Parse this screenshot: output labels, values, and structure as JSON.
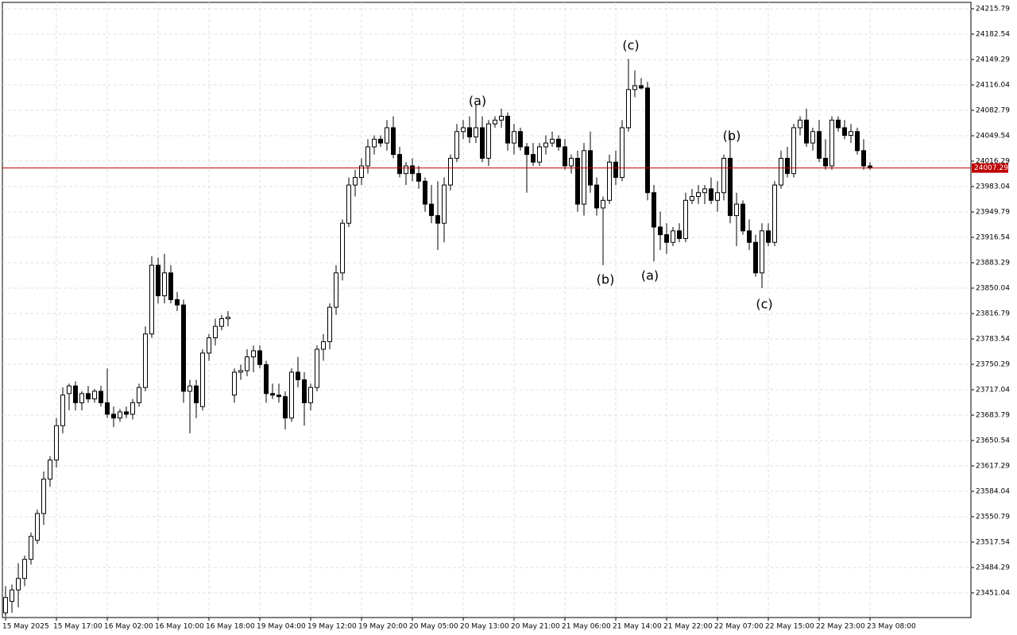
{
  "chart_data": {
    "type": "candlestick",
    "categories": [
      "15 May 2025",
      null,
      null,
      null,
      null,
      null,
      null,
      null,
      "15 May 17:00",
      null,
      null,
      null,
      null,
      null,
      null,
      null,
      "16 May 02:00",
      null,
      null,
      null,
      null,
      null,
      null,
      null,
      "16 May 10:00",
      null,
      null,
      null,
      null,
      null,
      null,
      null,
      "16 May 18:00",
      null,
      null,
      null,
      null,
      null,
      null,
      null,
      "19 May 04:00",
      null,
      null,
      null,
      null,
      null,
      null,
      null,
      "19 May 12:00",
      null,
      null,
      null,
      null,
      null,
      null,
      null,
      "19 May 20:00",
      null,
      null,
      null,
      null,
      null,
      null,
      null,
      "20 May 05:00",
      null,
      null,
      null,
      null,
      null,
      null,
      null,
      "20 May 13:00",
      null,
      null,
      null,
      null,
      null,
      null,
      null,
      "20 May 21:00",
      null,
      null,
      null,
      null,
      null,
      null,
      null,
      "21 May 06:00",
      null,
      null,
      null,
      null,
      null,
      null,
      null,
      "21 May 14:00",
      null,
      null,
      null,
      null,
      null,
      null,
      null,
      "21 May 22:00",
      null,
      null,
      null,
      null,
      null,
      null,
      null,
      "22 May 07:00",
      null,
      null,
      null,
      null,
      null,
      null,
      null,
      "22 May 15:00",
      null,
      null,
      null,
      null,
      null,
      null,
      null,
      "22 May 23:00",
      null,
      null,
      null,
      null,
      null,
      null,
      null,
      "23 May 08:00"
    ],
    "ohlc": [
      [
        23425,
        23460,
        23420,
        23445
      ],
      [
        23440,
        23462,
        23425,
        23455
      ],
      [
        23455,
        23490,
        23432,
        23470
      ],
      [
        23470,
        23500,
        23460,
        23495
      ],
      [
        23495,
        23530,
        23488,
        23525
      ],
      [
        23520,
        23560,
        23515,
        23555
      ],
      [
        23555,
        23610,
        23540,
        23600
      ],
      [
        23600,
        23630,
        23590,
        23625
      ],
      [
        23625,
        23680,
        23615,
        23670
      ],
      [
        23670,
        23720,
        23660,
        23710
      ],
      [
        23712,
        23725,
        23690,
        23722
      ],
      [
        23722,
        23728,
        23690,
        23700
      ],
      [
        23700,
        23715,
        23690,
        23712
      ],
      [
        23712,
        23722,
        23700,
        23705
      ],
      [
        23705,
        23718,
        23700,
        23715
      ],
      [
        23715,
        23722,
        23695,
        23700
      ],
      [
        23700,
        23745,
        23680,
        23685
      ],
      [
        23685,
        23695,
        23668,
        23680
      ],
      [
        23680,
        23692,
        23675,
        23688
      ],
      [
        23688,
        23695,
        23680,
        23685
      ],
      [
        23685,
        23705,
        23678,
        23700
      ],
      [
        23700,
        23725,
        23695,
        23720
      ],
      [
        23720,
        23800,
        23715,
        23790
      ],
      [
        23790,
        23892,
        23785,
        23880
      ],
      [
        23880,
        23890,
        23830,
        23840
      ],
      [
        23840,
        23895,
        23830,
        23870
      ],
      [
        23870,
        23880,
        23830,
        23835
      ],
      [
        23835,
        23845,
        23820,
        23828
      ],
      [
        23828,
        23835,
        23700,
        23715
      ],
      [
        23715,
        23730,
        23660,
        23722
      ],
      [
        23722,
        23730,
        23680,
        23700
      ],
      [
        23695,
        23770,
        23690,
        23765
      ],
      [
        23765,
        23790,
        23755,
        23785
      ],
      [
        23785,
        23810,
        23775,
        23800
      ],
      [
        23800,
        23815,
        23795,
        23810
      ],
      [
        23810,
        23820,
        23800,
        23812
      ],
      [
        23710,
        23745,
        23700,
        23740
      ],
      [
        23740,
        23750,
        23730,
        23742
      ],
      [
        23742,
        23770,
        23735,
        23760
      ],
      [
        23760,
        23775,
        23740,
        23768
      ],
      [
        23768,
        23775,
        23745,
        23750
      ],
      [
        23750,
        23755,
        23700,
        23712
      ],
      [
        23712,
        23725,
        23705,
        23710
      ],
      [
        23710,
        23725,
        23700,
        23708
      ],
      [
        23708,
        23715,
        23665,
        23680
      ],
      [
        23680,
        23745,
        23675,
        23740
      ],
      [
        23740,
        23760,
        23720,
        23730
      ],
      [
        23730,
        23740,
        23670,
        23700
      ],
      [
        23700,
        23725,
        23690,
        23720
      ],
      [
        23720,
        23775,
        23715,
        23770
      ],
      [
        23770,
        23790,
        23755,
        23780
      ],
      [
        23780,
        23830,
        23770,
        23825
      ],
      [
        23825,
        23880,
        23815,
        23870
      ],
      [
        23870,
        23940,
        23860,
        23935
      ],
      [
        23935,
        23995,
        23930,
        23985
      ],
      [
        23985,
        24005,
        23970,
        23995
      ],
      [
        23995,
        24020,
        23985,
        24010
      ],
      [
        24010,
        24045,
        24000,
        24035
      ],
      [
        24035,
        24050,
        24025,
        24045
      ],
      [
        24045,
        24050,
        24035,
        24040
      ],
      [
        24040,
        24070,
        24030,
        24060
      ],
      [
        24060,
        24075,
        24020,
        24025
      ],
      [
        24025,
        24035,
        23995,
        24000
      ],
      [
        24000,
        24015,
        23985,
        24010
      ],
      [
        24010,
        24020,
        23990,
        24000
      ],
      [
        24000,
        24010,
        23980,
        23990
      ],
      [
        23990,
        23995,
        23950,
        23960
      ],
      [
        23960,
        23985,
        23935,
        23945
      ],
      [
        23945,
        23990,
        23900,
        23935
      ],
      [
        23935,
        23995,
        23910,
        23985
      ],
      [
        23985,
        24025,
        23978,
        24020
      ],
      [
        24020,
        24065,
        24015,
        24055
      ],
      [
        24055,
        24070,
        24045,
        24060
      ],
      [
        24060,
        24075,
        24040,
        24048
      ],
      [
        24048,
        24090,
        24040,
        24060
      ],
      [
        24060,
        24075,
        24015,
        24020
      ],
      [
        24020,
        24070,
        24010,
        24065
      ],
      [
        24065,
        24075,
        24060,
        24070
      ],
      [
        24070,
        24085,
        24060,
        24075
      ],
      [
        24075,
        24080,
        24030,
        24040
      ],
      [
        24040,
        24065,
        24025,
        24055
      ],
      [
        24055,
        24060,
        24030,
        24035
      ],
      [
        24035,
        24040,
        23975,
        24025
      ],
      [
        24025,
        24040,
        24010,
        24015
      ],
      [
        24015,
        24040,
        24010,
        24035
      ],
      [
        24035,
        24050,
        24025,
        24040
      ],
      [
        24040,
        24055,
        24035,
        24045
      ],
      [
        24045,
        24050,
        24030,
        24035
      ],
      [
        24035,
        24045,
        24005,
        24010
      ],
      [
        24010,
        24025,
        24000,
        24020
      ],
      [
        24020,
        24030,
        23950,
        23960
      ],
      [
        23960,
        24040,
        23945,
        24030
      ],
      [
        24030,
        24055,
        23975,
        23985
      ],
      [
        23985,
        23995,
        23945,
        23955
      ],
      [
        23955,
        23970,
        23880,
        23965
      ],
      [
        23965,
        24025,
        23960,
        24015
      ],
      [
        24015,
        24030,
        23985,
        23995
      ],
      [
        23995,
        24070,
        23990,
        24060
      ],
      [
        24060,
        24150,
        24055,
        24110
      ],
      [
        24110,
        24135,
        24100,
        24115
      ],
      [
        24115,
        24125,
        24110,
        24112
      ],
      [
        24112,
        24120,
        23965,
        23975
      ],
      [
        23975,
        23985,
        23885,
        23930
      ],
      [
        23930,
        23950,
        23900,
        23920
      ],
      [
        23920,
        23935,
        23895,
        23910
      ],
      [
        23910,
        23930,
        23905,
        23925
      ],
      [
        23925,
        23935,
        23910,
        23915
      ],
      [
        23915,
        23975,
        23910,
        23965
      ],
      [
        23965,
        23980,
        23960,
        23970
      ],
      [
        23970,
        23985,
        23960,
        23975
      ],
      [
        23975,
        23985,
        23960,
        23980
      ],
      [
        23980,
        23995,
        23960,
        23965
      ],
      [
        23965,
        23990,
        23950,
        23975
      ],
      [
        23975,
        24025,
        23965,
        24020
      ],
      [
        24020,
        24050,
        23935,
        23945
      ],
      [
        23945,
        23975,
        23905,
        23960
      ],
      [
        23960,
        23965,
        23920,
        23925
      ],
      [
        23925,
        23940,
        23900,
        23910
      ],
      [
        23910,
        23920,
        23865,
        23870
      ],
      [
        23870,
        23935,
        23850,
        23925
      ],
      [
        23925,
        23935,
        23905,
        23910
      ],
      [
        23910,
        23990,
        23905,
        23985
      ],
      [
        23985,
        24030,
        23980,
        24020
      ],
      [
        24020,
        24035,
        23995,
        24000
      ],
      [
        24000,
        24065,
        23995,
        24060
      ],
      [
        24060,
        24075,
        24050,
        24070
      ],
      [
        24070,
        24085,
        24035,
        24040
      ],
      [
        24040,
        24060,
        24030,
        24055
      ],
      [
        24055,
        24070,
        24015,
        24020
      ],
      [
        24020,
        24045,
        24005,
        24010
      ],
      [
        24010,
        24075,
        24005,
        24070
      ],
      [
        24070,
        24075,
        24055,
        24060
      ],
      [
        24060,
        24070,
        24045,
        24050
      ],
      [
        24050,
        24065,
        24040,
        24055
      ],
      [
        24055,
        24060,
        24025,
        24030
      ],
      [
        24030,
        24045,
        24005,
        24010
      ],
      [
        24010,
        24015,
        24005,
        24007.29
      ]
    ],
    "ylim": [
      23418.8,
      24224.1
    ],
    "yticks": [
      23451.04,
      23484.29,
      23517.54,
      23550.79,
      23584.04,
      23617.29,
      23650.54,
      23683.79,
      23717.04,
      23750.29,
      23783.54,
      23816.79,
      23850.04,
      23883.29,
      23916.54,
      23949.79,
      23983.04,
      24016.29,
      24049.54,
      24082.79,
      24116.04,
      24149.29,
      24182.54,
      24215.79
    ],
    "grid": true,
    "up_color": "#ffffff",
    "down_color": "#000000",
    "price_line": {
      "value": 24007.29,
      "color": "#c00000"
    },
    "annotations": [
      {
        "text": "(c)",
        "color": "#20a080"
      },
      {
        "text": "(a)",
        "color": "#2828d0"
      },
      {
        "text": "(b)",
        "color": "#2828d0"
      },
      {
        "text": "(a)",
        "color": "#2828d0"
      },
      {
        "text": "(b)",
        "color": "#2828d0"
      },
      {
        "text": "(c)",
        "color": "#20a080"
      }
    ]
  }
}
